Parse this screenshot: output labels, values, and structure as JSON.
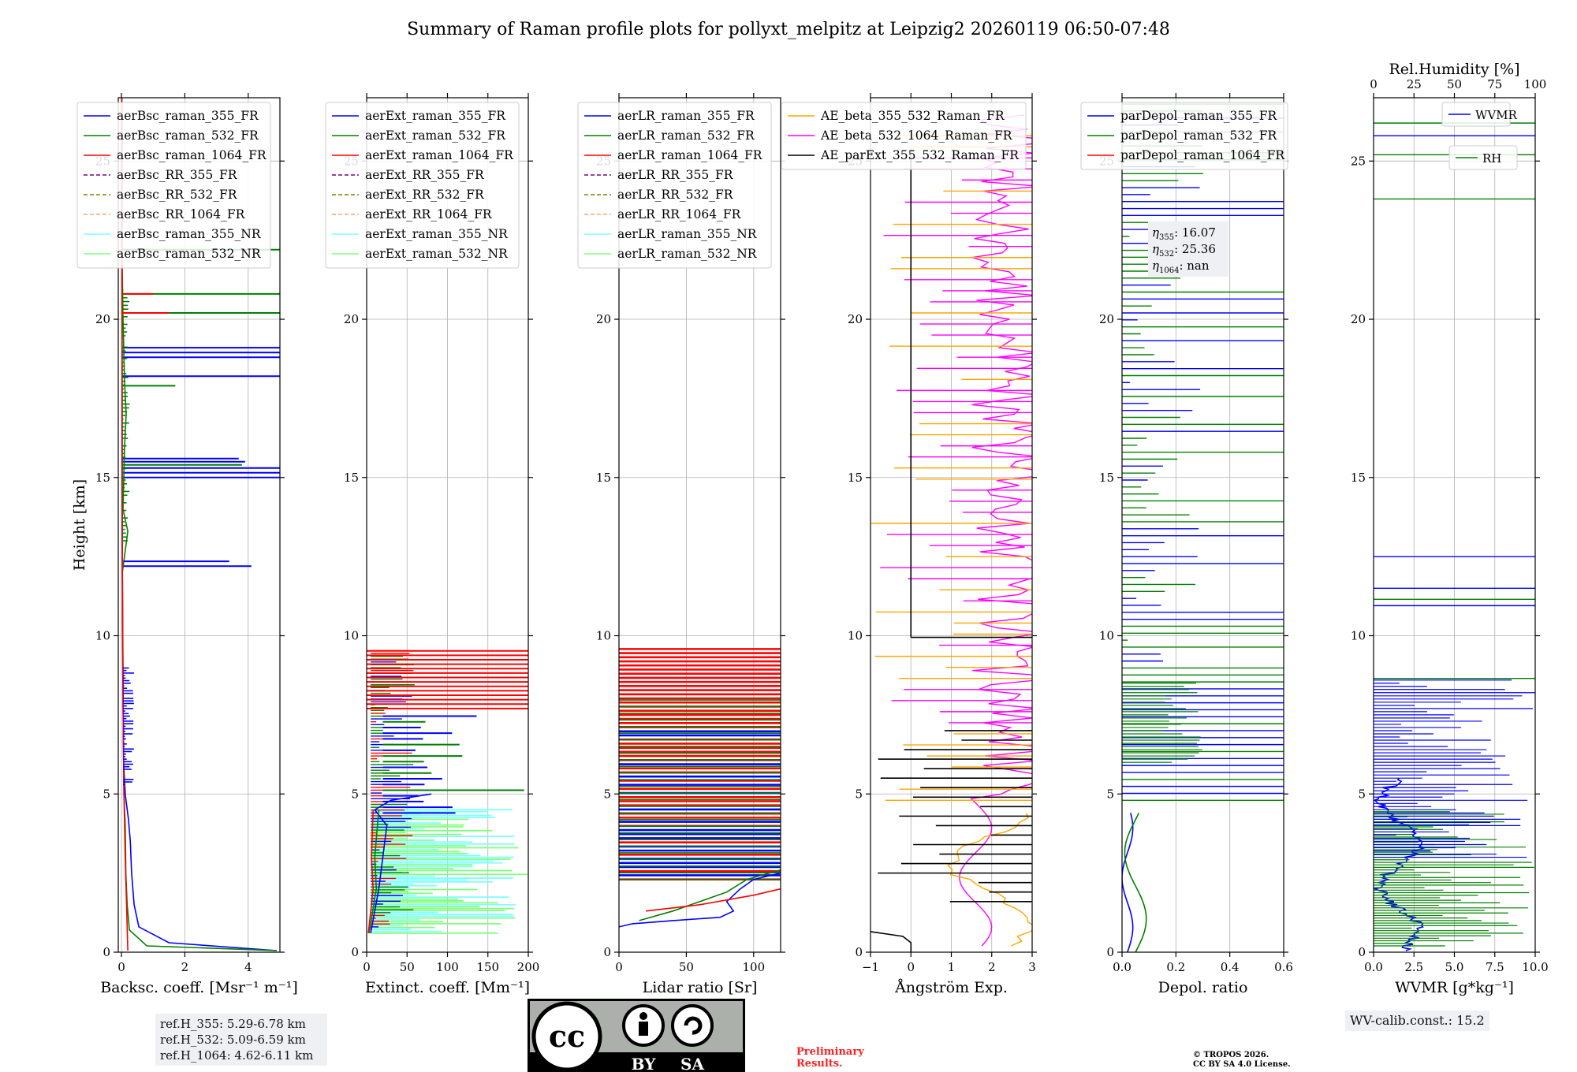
{
  "title": "Summary of Raman profile plots for pollyxt_melpitz at Leipzig2 20260119 06:50-07:48",
  "colors": {
    "c355": "#0000ff",
    "c532": "#008000",
    "c1064": "#ff0000",
    "rr355": "#800080",
    "rr532": "#808000",
    "rr1064": "#ffa07a",
    "nr355": "#7fffff",
    "nr532": "#7fff7f",
    "ae1": "#ffa500",
    "ae2": "#ff00ff",
    "ae3": "#000000"
  },
  "chart_data": [
    {
      "type": "line",
      "panel": "backscatter",
      "xlabel": "Backsc. coeff. [Msr⁻¹ m⁻¹]",
      "ylabel": "Height [km]",
      "xlim": [
        -0.1,
        5
      ],
      "ylim": [
        0,
        27
      ],
      "xticks": [
        "0",
        "2",
        "4"
      ],
      "xtick_values": [
        0,
        2,
        4
      ],
      "yticks": [
        "0",
        "5",
        "10",
        "15",
        "20",
        "25"
      ],
      "legend": [
        "aerBsc_raman_355_FR",
        "aerBsc_raman_532_FR",
        "aerBsc_raman_1064_FR",
        "aerBsc_RR_355_FR",
        "aerBsc_RR_532_FR",
        "aerBsc_RR_1064_FR",
        "aerBsc_raman_355_NR",
        "aerBsc_raman_532_NR"
      ],
      "series": [
        {
          "name": "aerBsc_raman_355_FR",
          "color": "c355",
          "points": [
            [
              4.9,
              0.05
            ],
            [
              1.5,
              0.3
            ],
            [
              0.55,
              0.8
            ],
            [
              0.4,
              1.5
            ],
            [
              0.32,
              2.5
            ],
            [
              0.28,
              3.5
            ],
            [
              0.22,
              4.2
            ],
            [
              0.12,
              5
            ],
            [
              0.07,
              6
            ],
            [
              0.05,
              8
            ],
            [
              0.04,
              10
            ],
            [
              0.03,
              12
            ],
            [
              0.02,
              15
            ],
            [
              0.02,
              20
            ],
            [
              0.01,
              27
            ]
          ],
          "spikes": [
            [
              12.2,
              4.1
            ],
            [
              12.35,
              3.4
            ],
            [
              15.0,
              5
            ],
            [
              15.15,
              5
            ],
            [
              15.3,
              5
            ],
            [
              15.5,
              3.9
            ],
            [
              15.6,
              3.7
            ],
            [
              18.2,
              5
            ],
            [
              18.8,
              5
            ],
            [
              18.95,
              5
            ],
            [
              19.1,
              5
            ]
          ]
        },
        {
          "name": "aerBsc_raman_532_FR",
          "color": "c532",
          "points": [
            [
              4.9,
              0.05
            ],
            [
              0.8,
              0.2
            ],
            [
              0.25,
              0.7
            ],
            [
              0.18,
              1.5
            ],
            [
              0.14,
              2.5
            ],
            [
              0.12,
              4
            ],
            [
              0.08,
              5
            ],
            [
              0.06,
              7
            ],
            [
              0.05,
              9
            ],
            [
              0.03,
              12
            ],
            [
              0.2,
              13.3
            ],
            [
              0.05,
              14
            ],
            [
              0.1,
              16
            ],
            [
              0.15,
              17
            ],
            [
              0.1,
              18
            ],
            [
              0.05,
              20
            ],
            [
              0.02,
              22
            ],
            [
              0.01,
              27
            ]
          ],
          "spikes": [
            [
              15.4,
              3.8
            ],
            [
              17.9,
              1.7
            ],
            [
              20.2,
              5
            ],
            [
              20.8,
              5
            ],
            [
              22.2,
              5
            ]
          ]
        },
        {
          "name": "aerBsc_raman_1064_FR",
          "color": "c1064",
          "points": [
            [
              0.2,
              0.05
            ],
            [
              0.16,
              1.5
            ],
            [
              0.12,
              3
            ],
            [
              0.08,
              5
            ],
            [
              0.05,
              8
            ],
            [
              0.03,
              12
            ],
            [
              0.02,
              20
            ],
            [
              0.01,
              27
            ]
          ],
          "spikes": [
            [
              20.2,
              1.5
            ],
            [
              20.8,
              1
            ]
          ]
        }
      ]
    },
    {
      "type": "line",
      "panel": "extinction",
      "xlabel": "Extinct. coeff. [Mm⁻¹]",
      "xlim": [
        0,
        200
      ],
      "ylim": [
        0,
        27
      ],
      "xticks": [
        "0",
        "50",
        "100",
        "150",
        "200"
      ],
      "xtick_values": [
        0,
        50,
        100,
        150,
        200
      ],
      "yticks": [
        "0",
        "5",
        "10",
        "15",
        "20",
        "25"
      ],
      "legend": [
        "aerExt_raman_355_FR",
        "aerExt_raman_532_FR",
        "aerExt_raman_1064_FR",
        "aerExt_RR_355_FR",
        "aerExt_RR_532_FR",
        "aerExt_RR_1064_FR",
        "aerExt_raman_355_NR",
        "aerExt_raman_532_NR"
      ]
    },
    {
      "type": "line",
      "panel": "lidar_ratio",
      "xlabel": "Lidar ratio [Sr]",
      "xlim": [
        0,
        120
      ],
      "ylim": [
        0,
        27
      ],
      "xticks": [
        "0",
        "50",
        "100"
      ],
      "xtick_values": [
        0,
        50,
        100
      ],
      "yticks": [
        "0",
        "5",
        "10",
        "15",
        "20",
        "25"
      ],
      "legend": [
        "aerLR_raman_355_FR",
        "aerLR_raman_532_FR",
        "aerLR_raman_1064_FR",
        "aerLR_RR_355_FR",
        "aerLR_RR_532_FR",
        "aerLR_RR_1064_FR",
        "aerLR_raman_355_NR",
        "aerLR_raman_532_NR"
      ]
    },
    {
      "type": "line",
      "panel": "angstrom",
      "xlabel": "Ångström Exp.",
      "xlim": [
        -1,
        3
      ],
      "ylim": [
        0,
        27
      ],
      "xticks": [
        "−1",
        "0",
        "1",
        "2",
        "3"
      ],
      "xtick_values": [
        -1,
        0,
        1,
        2,
        3
      ],
      "yticks": [
        "0",
        "5",
        "10",
        "15",
        "20",
        "25"
      ],
      "legend": [
        "AE_beta_355_532_Raman_FR",
        "AE_beta_532_1064_Raman_FR",
        "AE_parExt_355_532_Raman_FR"
      ],
      "series": [
        {
          "name": "AE_parExt_355_532_Raman_FR",
          "color": "ae3",
          "points": [
            [
              -1,
              0.65
            ],
            [
              -0.2,
              0.5
            ],
            [
              0,
              0.3
            ],
            [
              0,
              0
            ]
          ],
          "vertical": [
            0,
            9.95,
            25.3
          ]
        }
      ]
    },
    {
      "type": "line",
      "panel": "depolarization",
      "xlabel": "Depol. ratio",
      "xlim": [
        0,
        0.6
      ],
      "ylim": [
        0,
        27
      ],
      "xticks": [
        "0.0",
        "0.2",
        "0.4",
        "0.6"
      ],
      "xtick_values": [
        0,
        0.2,
        0.4,
        0.6
      ],
      "yticks": [
        "0",
        "5",
        "10",
        "15",
        "20",
        "25"
      ],
      "legend": [
        "parDepol_raman_355_FR",
        "parDepol_raman_532_FR",
        "parDepol_raman_1064_FR"
      ],
      "eta": {
        "e355": "16.07",
        "e532": "25.36",
        "e1064": "nan"
      }
    },
    {
      "type": "line",
      "panel": "water_vapor",
      "xlabel": "WVMR [g*kg⁻¹]",
      "xlabel2": "Rel.Humidity [%]",
      "xlim": [
        0,
        10
      ],
      "x2lim": [
        0,
        100
      ],
      "ylim": [
        0,
        27
      ],
      "xticks": [
        "0.0",
        "2.5",
        "5.0",
        "7.5",
        "10.0"
      ],
      "xtick_values": [
        0,
        2.5,
        5,
        7.5,
        10
      ],
      "x2ticks": [
        "0",
        "25",
        "50",
        "75",
        "100"
      ],
      "x2tick_values": [
        0,
        25,
        50,
        75,
        100
      ],
      "yticks": [
        "0",
        "5",
        "10",
        "15",
        "20",
        "25"
      ],
      "legend": [
        "WVMR",
        "RH"
      ]
    }
  ],
  "annotations": {
    "ref_h_355": "ref.H_355: 5.29-6.78 km",
    "ref_h_532": "ref.H_532: 5.09-6.59 km",
    "ref_h_1064": "ref.H_1064: 4.62-6.11 km",
    "wv_calib": "WV-calib.const.: 15.2",
    "preliminary_1": "Preliminary",
    "preliminary_2": "Results.",
    "copyright_1": "© TROPOS 2026.",
    "copyright_2": "CC BY SA 4.0 License.",
    "cc_label": "cc",
    "by_label": "BY",
    "sa_label": "SA"
  }
}
